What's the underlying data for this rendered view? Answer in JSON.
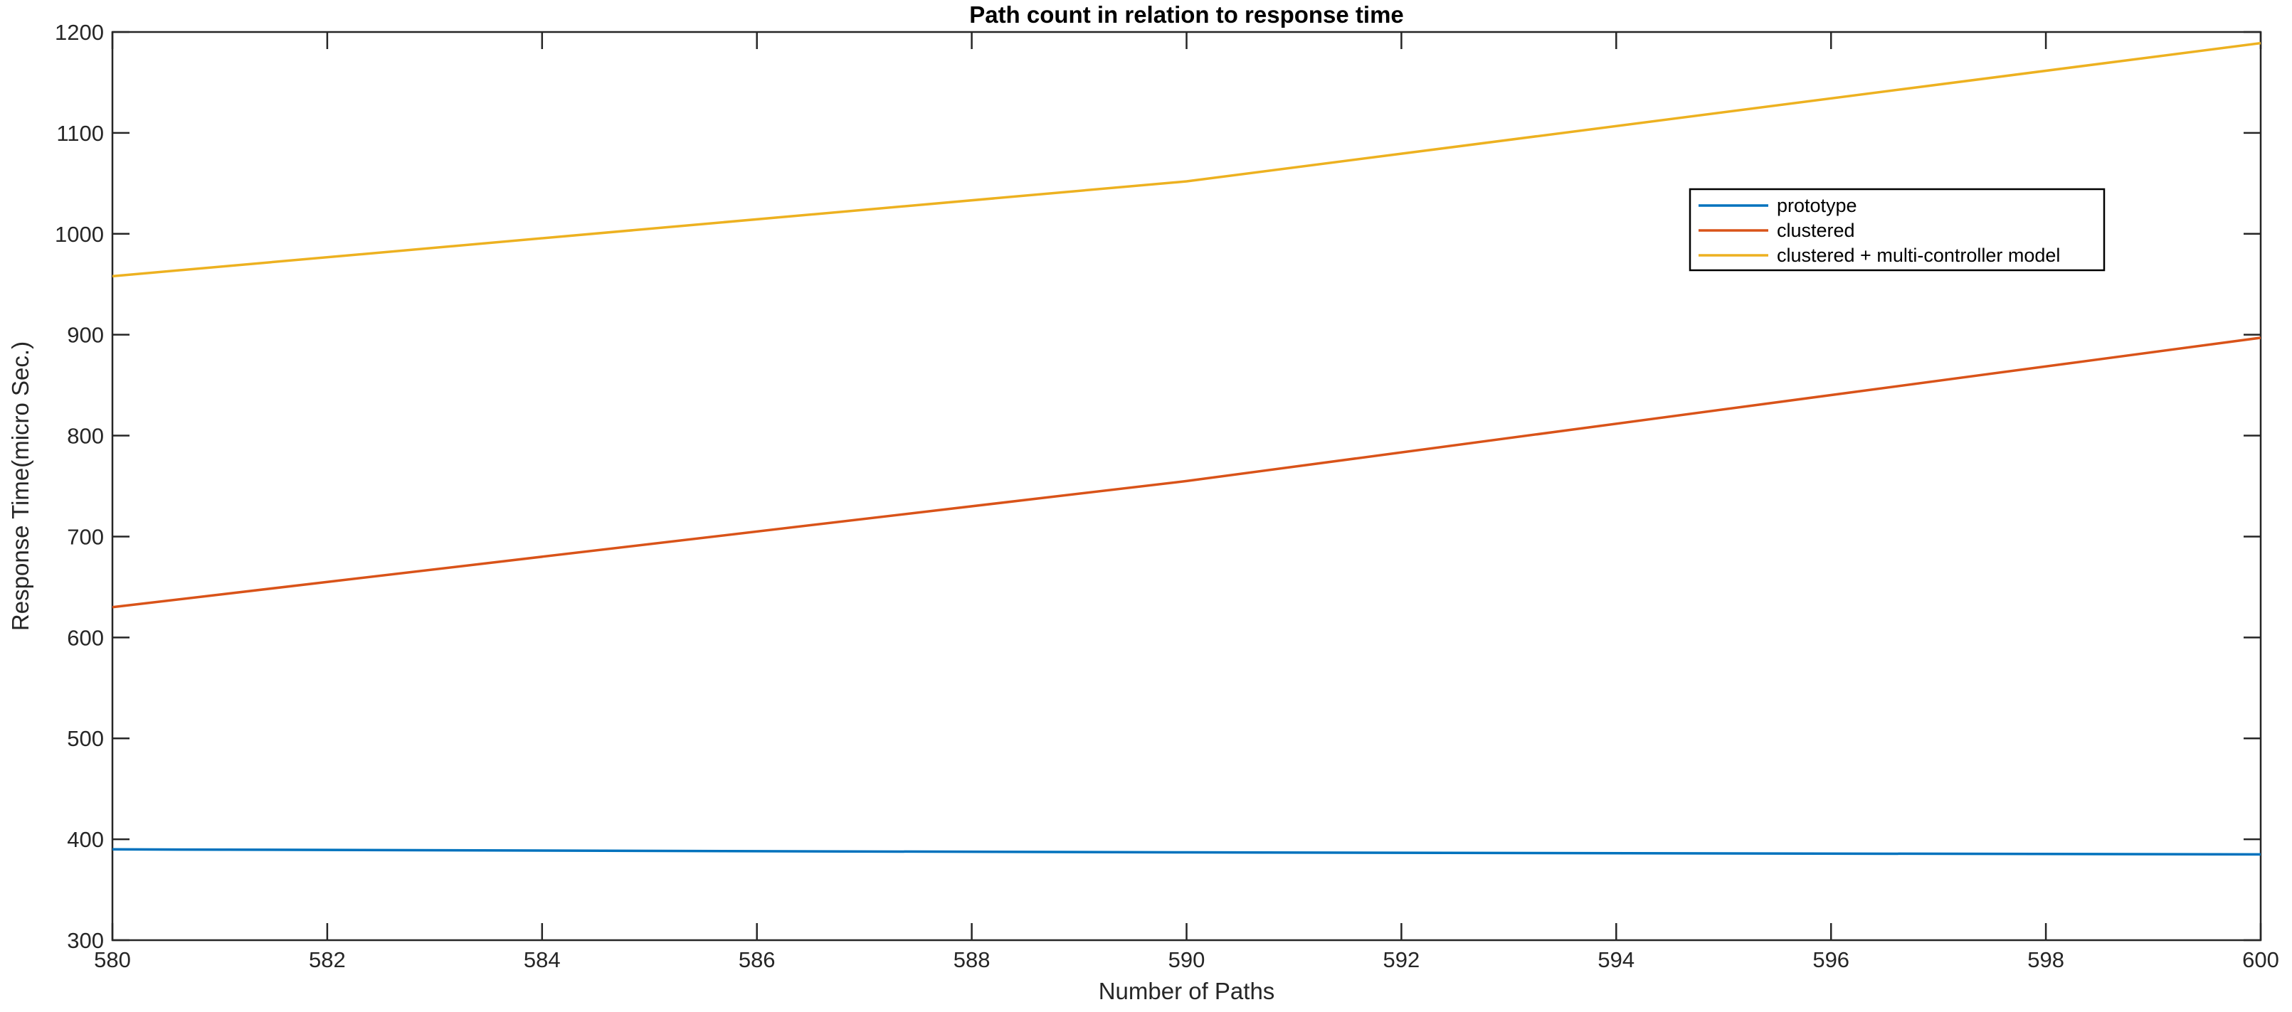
{
  "chart_data": {
    "type": "line",
    "title": "Path count in relation to response time",
    "xlabel": "Number of Paths",
    "ylabel": "Response Time(micro Sec.)",
    "xlim": [
      580,
      600
    ],
    "ylim": [
      300,
      1200
    ],
    "xticks": [
      580,
      582,
      584,
      586,
      588,
      590,
      592,
      594,
      596,
      598,
      600
    ],
    "yticks": [
      300,
      400,
      500,
      600,
      700,
      800,
      900,
      1000,
      1100,
      1200
    ],
    "grid": false,
    "legend_position": "top-right",
    "series": [
      {
        "name": "prototype",
        "color": "#0072BD",
        "x": [
          580,
          590,
          600
        ],
        "y": [
          390,
          387,
          385
        ]
      },
      {
        "name": "clustered",
        "color": "#D95319",
        "x": [
          580,
          590,
          600
        ],
        "y": [
          630,
          755,
          897
        ]
      },
      {
        "name": "clustered + multi-controller model",
        "color": "#EDB120",
        "x": [
          580,
          590,
          600
        ],
        "y": [
          958,
          1052,
          1189
        ]
      }
    ]
  }
}
